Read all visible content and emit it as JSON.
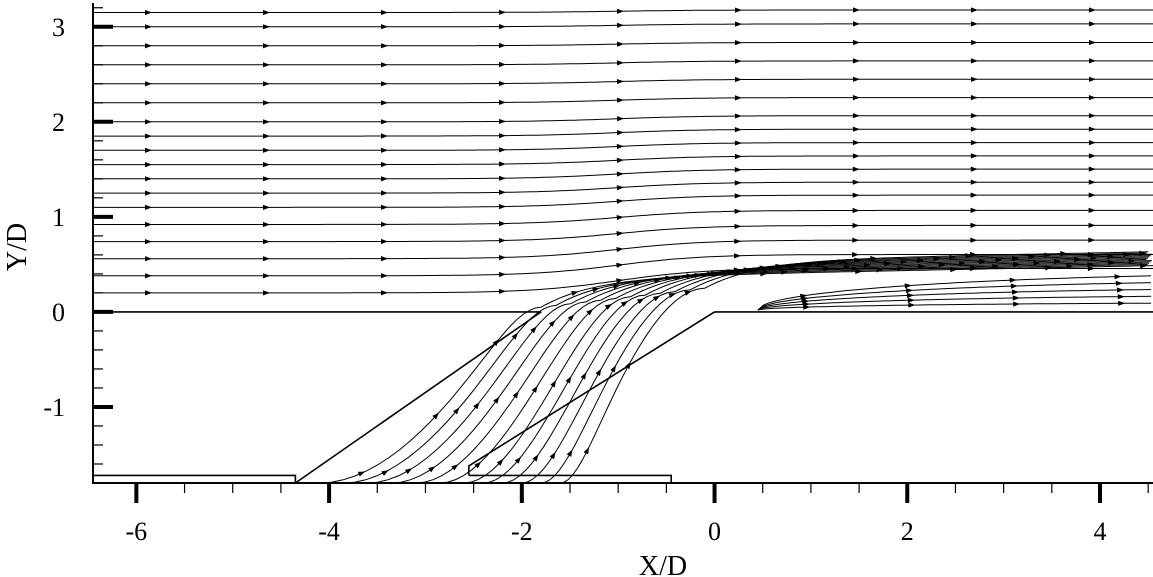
{
  "chart_data": {
    "type": "streamline",
    "xlabel": "X/D",
    "ylabel": "Y/D",
    "xlim": [
      -6.45,
      4.55
    ],
    "ylim": [
      -1.8,
      3.25
    ],
    "x_ticks": [
      -6,
      -4,
      -2,
      0,
      2,
      4
    ],
    "y_ticks": [
      -1,
      0,
      1,
      2,
      3
    ],
    "x_tick_labels": [
      "-6",
      "-4",
      "-2",
      "0",
      "2",
      "4"
    ],
    "y_tick_labels": [
      "-1",
      "0",
      "1",
      "2",
      "3"
    ],
    "x_minor_step": 0.5,
    "y_minor_step": 0.2,
    "grid": false,
    "geometry": {
      "wall_surface_y": 0,
      "plenum_floor_y": -1.72,
      "hole_upstream_wall": [
        [
          -4.35,
          -1.8
        ],
        [
          -1.8,
          0
        ]
      ],
      "hole_downstream_wall": [
        [
          -2.55,
          -1.62
        ],
        [
          0,
          0
        ]
      ],
      "plenum_slot": [
        [
          -6.45,
          -1.72
        ],
        [
          -0.45,
          -1.72
        ]
      ]
    },
    "freestream_levels_y": [
      0.2,
      0.38,
      0.56,
      0.74,
      0.92,
      1.1,
      1.25,
      1.4,
      1.55,
      1.7,
      1.85,
      2.0,
      2.2,
      2.4,
      2.6,
      2.8,
      3.0,
      3.15
    ],
    "jet_start_x": [
      -4.1,
      -3.85,
      -3.6,
      -3.35,
      -3.1,
      -2.85,
      -2.6,
      -2.4,
      -2.2,
      -2.0,
      -1.8,
      -1.6
    ],
    "separation_bubble": {
      "x_start": 0.1,
      "x_end": 4.55,
      "max_height": 0.45
    }
  }
}
